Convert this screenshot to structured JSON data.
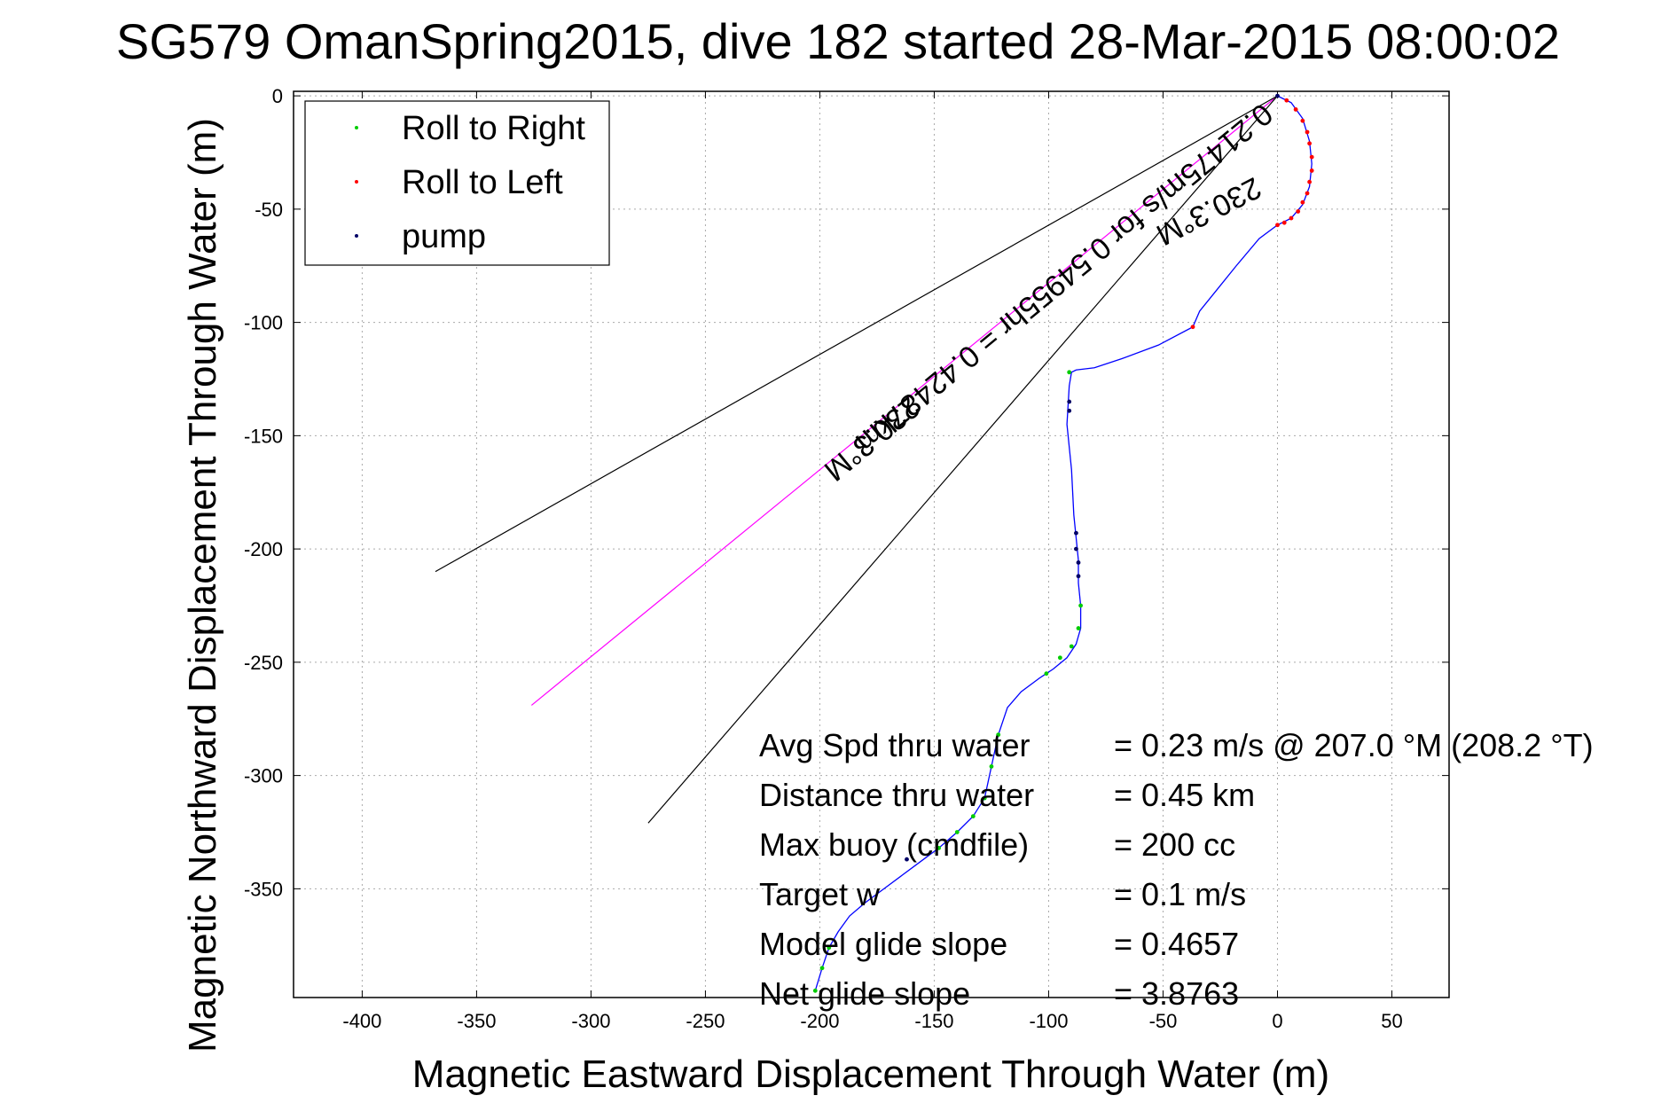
{
  "chart_data": {
    "type": "line",
    "title": "SG579 OmanSpring2015, dive 182 started 28-Mar-2015 08:00:02",
    "xlabel": "Magnetic Eastward Displacement Through Water (m)",
    "ylabel": "Magnetic Northward Displacement Through Water (m)",
    "xlim": [
      -430,
      75
    ],
    "ylim": [
      -398,
      2
    ],
    "x_ticks": [
      -400,
      -350,
      -300,
      -250,
      -200,
      -150,
      -100,
      -50,
      0,
      50
    ],
    "y_ticks": [
      0,
      -50,
      -100,
      -150,
      -200,
      -250,
      -300,
      -350
    ],
    "grid": true,
    "legend_position": "top-left",
    "legend": [
      {
        "label": "Roll to Right",
        "color": "#00cc00"
      },
      {
        "label": "Roll to Left",
        "color": "#ff0000"
      },
      {
        "label": "pump",
        "color": "#000066"
      }
    ],
    "series": [
      {
        "name": "track",
        "color": "#0000ff",
        "x": [
          0,
          6,
          11,
          14,
          15,
          14,
          11,
          6,
          0,
          -8,
          -18,
          -26,
          -34,
          -37,
          -52,
          -68,
          -80,
          -88,
          -90,
          -91,
          -92,
          -90,
          -89,
          -88,
          -87,
          -87,
          -86,
          -86,
          -88,
          -92,
          -98,
          -104,
          -112,
          -118,
          -122,
          -125,
          -128,
          -133,
          -140,
          -148,
          -156,
          -164,
          -172,
          -180,
          -187,
          -192,
          -196,
          -199,
          -202
        ],
        "y": [
          0,
          -3,
          -10,
          -20,
          -30,
          -40,
          -48,
          -54,
          -57,
          -63,
          -75,
          -85,
          -95,
          -102,
          -110,
          -116,
          -120,
          -121,
          -122,
          -128,
          -145,
          -165,
          -185,
          -195,
          -205,
          -215,
          -225,
          -235,
          -242,
          -248,
          -253,
          -257,
          -263,
          -270,
          -282,
          -296,
          -310,
          -318,
          -325,
          -332,
          -338,
          -344,
          -350,
          -356,
          -362,
          -369,
          -376,
          -385,
          -395
        ]
      },
      {
        "name": "Roll to Right",
        "color": "#00cc00",
        "x": [
          -91,
          -86,
          -87,
          -90,
          -95,
          -101,
          -122,
          -125,
          -128,
          -133,
          -140,
          -148,
          -196,
          -199,
          -202
        ],
        "y": [
          -122,
          -225,
          -235,
          -243,
          -248,
          -255,
          -282,
          -296,
          -310,
          -318,
          -325,
          -332,
          -376,
          -385,
          -395
        ]
      },
      {
        "name": "Roll to Left",
        "color": "#ff0000",
        "x": [
          4,
          8,
          11,
          13,
          14,
          15,
          15,
          14,
          13,
          11,
          9,
          6,
          3,
          0,
          -37
        ],
        "y": [
          -2,
          -6,
          -11,
          -16,
          -21,
          -27,
          -33,
          -38,
          -43,
          -47,
          -51,
          -54,
          -56,
          -57,
          -102
        ]
      },
      {
        "name": "pump",
        "color": "#000066",
        "x": [
          0,
          -91,
          -91,
          -88,
          -88,
          -87,
          -87,
          -162
        ],
        "y": [
          0,
          -135,
          -139,
          -193,
          -200,
          -206,
          -212,
          -337
        ]
      }
    ],
    "reference_lines": [
      {
        "name": "heading",
        "color": "#ff00ff",
        "x": [
          0,
          -326
        ],
        "y": [
          0,
          -269
        ]
      },
      {
        "name": "wedge-upper",
        "color": "#000000",
        "x": [
          0,
          -368
        ],
        "y": [
          0,
          -210
        ]
      },
      {
        "name": "wedge-lower",
        "color": "#000000",
        "x": [
          0,
          -275
        ],
        "y": [
          0,
          -321
        ]
      }
    ],
    "line_annotations": [
      {
        "text": "230.3°M",
        "rotation": 152.9,
        "x": -32,
        "y": -47
      },
      {
        "text": "0.21475m/s for 0.54955hr = 0.42487km",
        "rotation": 140.5,
        "x": -96,
        "y": -77
      },
      {
        "text": "230.3°M",
        "rotation": 140.5,
        "x": -180,
        "y": -148
      }
    ],
    "stats": [
      {
        "label": "Avg Spd thru water",
        "value": "=  0.23 m/s @ 207.0 °M (208.2 °T)"
      },
      {
        "label": "Distance thru water",
        "value": "=  0.45 km"
      },
      {
        "label": "Max buoy (cmdfile)",
        "value": "= 200 cc"
      },
      {
        "label": "Target w",
        "value": "= 0.1 m/s"
      },
      {
        "label": "Model glide slope",
        "value": "= 0.4657"
      },
      {
        "label": "Net glide slope",
        "value": "= 3.8763"
      }
    ]
  }
}
